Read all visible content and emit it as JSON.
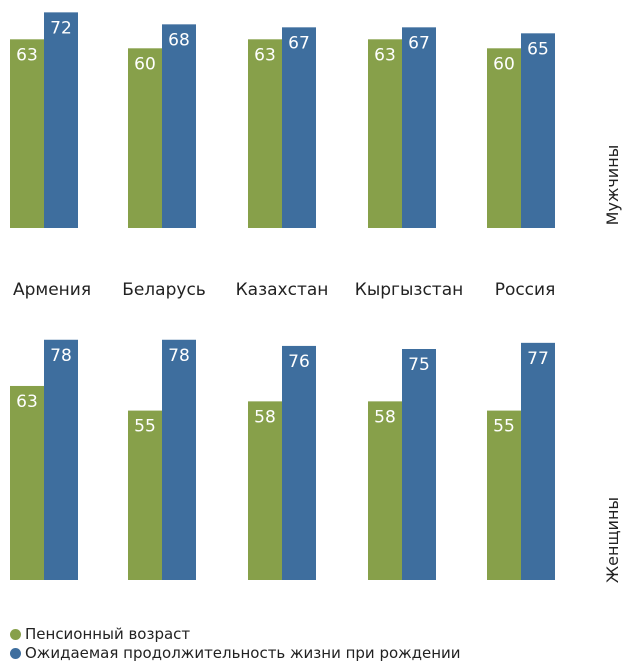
{
  "colors": {
    "pension": "#87a04a",
    "life": "#3e6e9e"
  },
  "legend": {
    "pension": "Пенсионный возраст",
    "life": "Ожидаемая продолжительность жизни при рождении"
  },
  "chart_data": [
    {
      "type": "bar",
      "panel_label": "Мужчины",
      "categories": [
        "Армения",
        "Беларусь",
        "Казахстан",
        "Кыргызстан",
        "Россия"
      ],
      "series": [
        {
          "name": "Пенсионный возраст",
          "values": [
            63,
            60,
            63,
            63,
            60
          ]
        },
        {
          "name": "Ожидаемая продолжительность жизни при рождении",
          "values": [
            72,
            68,
            67,
            67,
            65
          ]
        }
      ]
    },
    {
      "type": "bar",
      "panel_label": "Женщины",
      "categories": [
        "Армения",
        "Беларусь",
        "Казахстан",
        "Кыргызстан",
        "Россия"
      ],
      "series": [
        {
          "name": "Пенсионный возраст",
          "values": [
            63,
            55,
            58,
            58,
            55
          ]
        },
        {
          "name": "Ожидаемая продолжительность жизни при рождении",
          "values": [
            78,
            78,
            76,
            75,
            77
          ]
        }
      ]
    }
  ]
}
